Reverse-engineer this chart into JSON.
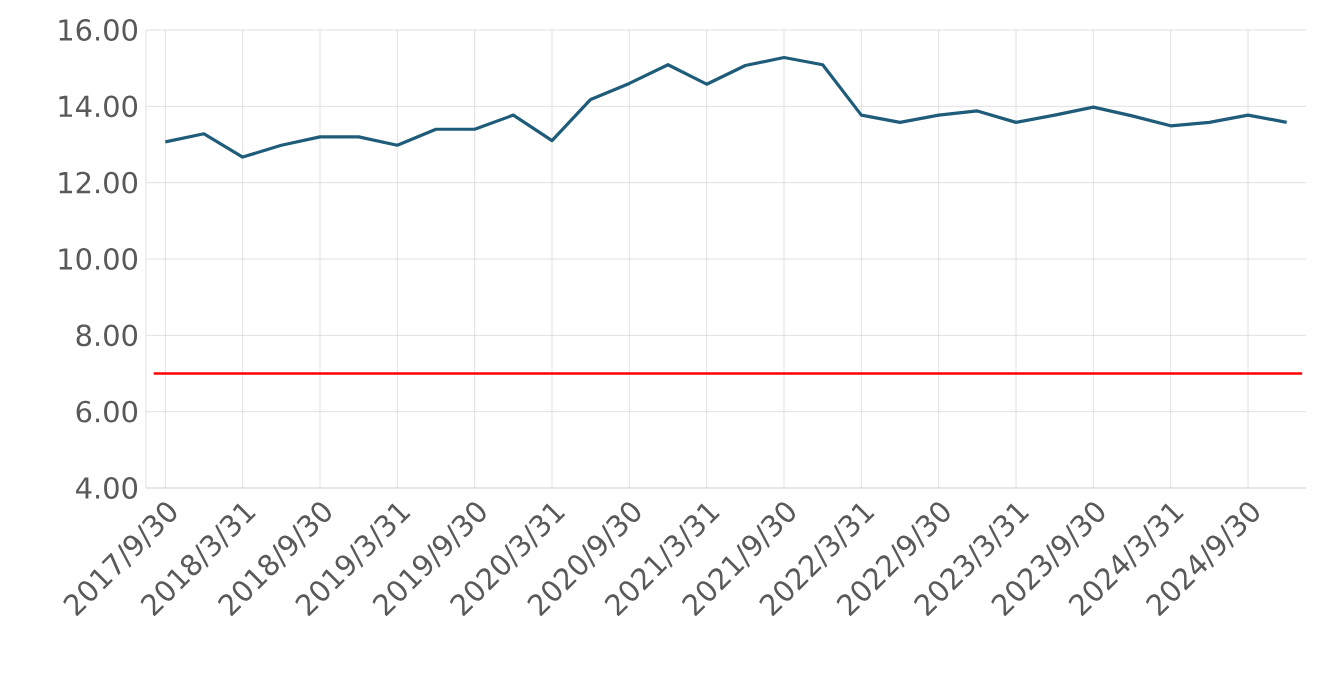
{
  "chart_data": {
    "type": "line",
    "categories": [
      "2017/9/30",
      null,
      "2018/3/31",
      null,
      "2018/9/30",
      null,
      "2019/3/31",
      null,
      "2019/9/30",
      null,
      "2020/3/31",
      null,
      "2020/9/30",
      null,
      "2021/3/31",
      null,
      "2021/9/30",
      null,
      "2022/3/31",
      null,
      "2022/9/30",
      null,
      "2023/3/31",
      null,
      "2023/9/30",
      null,
      "2024/3/31",
      null,
      "2024/9/30",
      null
    ],
    "series": [
      {
        "color": "#1f5c7a",
        "values": [
          13.07,
          13.28,
          12.67,
          12.98,
          13.2,
          13.2,
          12.98,
          13.4,
          13.4,
          13.77,
          13.1,
          14.18,
          14.6,
          15.09,
          14.58,
          15.07,
          15.28,
          15.09,
          13.77,
          13.58,
          13.77,
          13.88,
          13.58,
          13.77,
          13.98,
          13.75,
          13.49,
          13.58,
          13.77,
          13.58
        ]
      }
    ],
    "ylim": [
      4,
      16
    ],
    "yticks": [
      {
        "value": 4,
        "label": "4.00"
      },
      {
        "value": 6,
        "label": "6.00"
      },
      {
        "value": 8,
        "label": "8.00"
      },
      {
        "value": 10,
        "label": "10.00"
      },
      {
        "value": 12,
        "label": "12.00"
      },
      {
        "value": 14,
        "label": "14.00"
      },
      {
        "value": 16,
        "label": "16.00"
      }
    ],
    "ref_lines": [
      {
        "axis": "y",
        "value": 7,
        "color": "#ff0000"
      }
    ],
    "grid": true,
    "marker": "none",
    "line_style": "solid"
  }
}
